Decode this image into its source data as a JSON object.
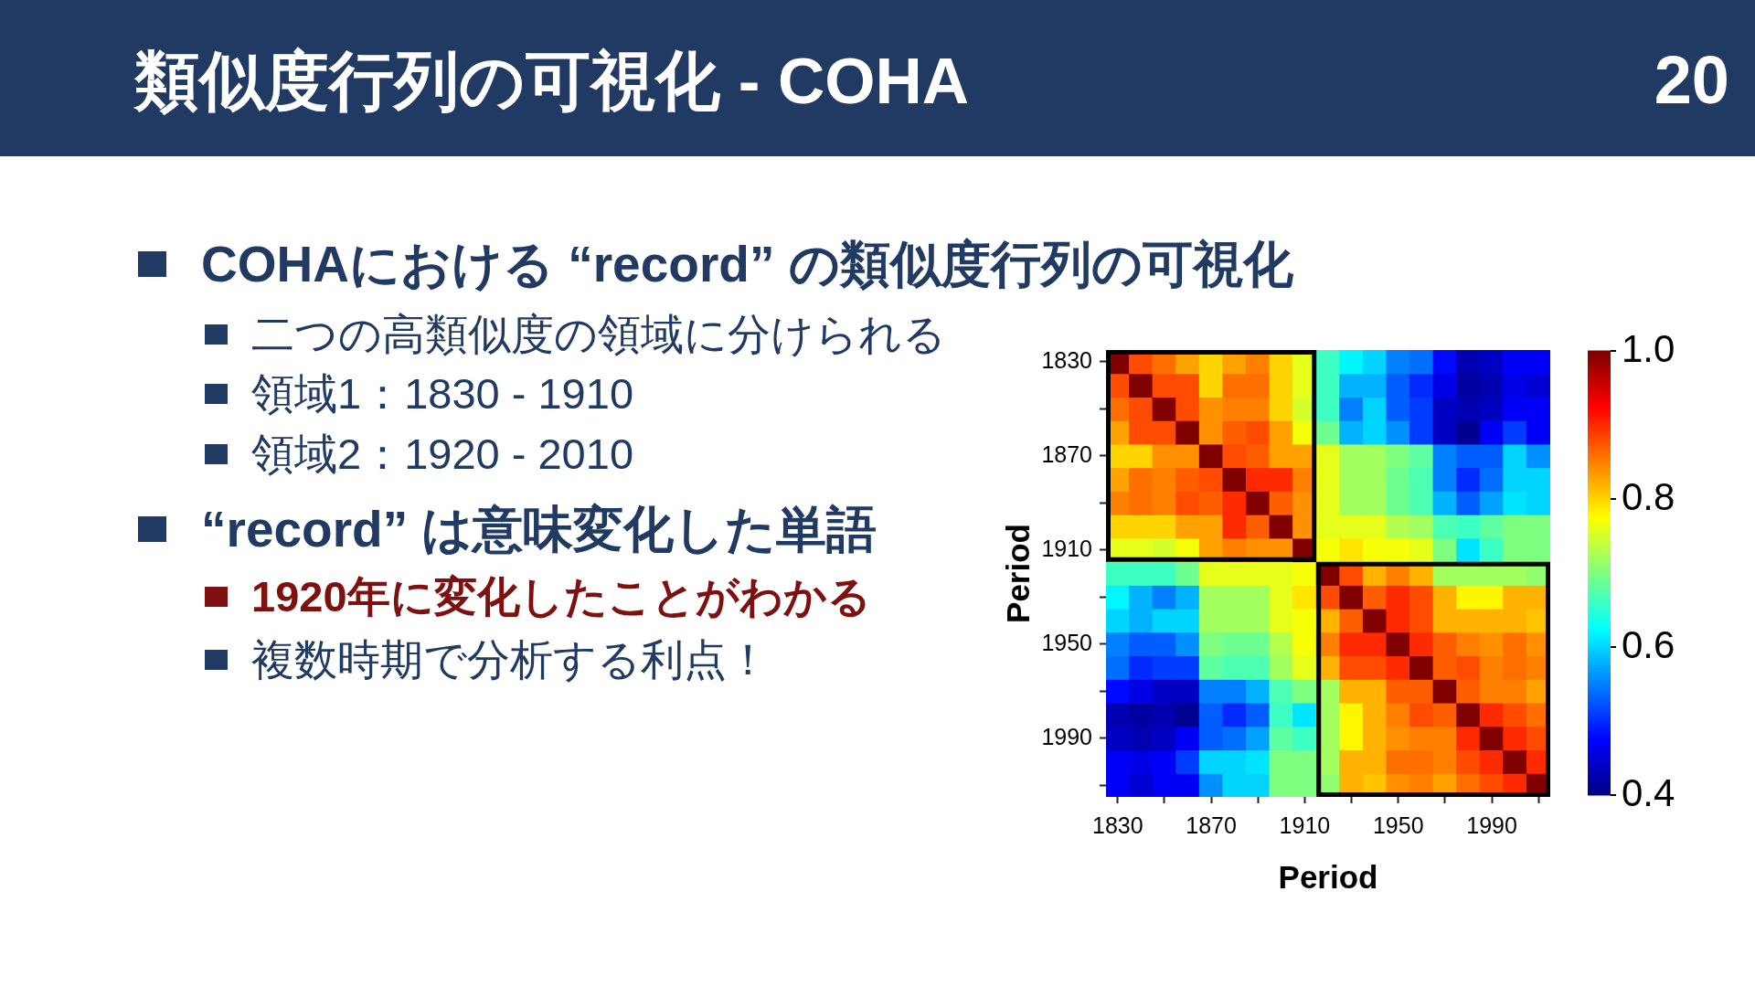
{
  "chart_data": {
    "type": "heatmap",
    "title": "類似度行列の可視化 - COHA",
    "xlabel": "Period",
    "ylabel": "Period",
    "categories": [
      "1830",
      null,
      null,
      null,
      "1870",
      null,
      null,
      null,
      "1910",
      null,
      null,
      null,
      "1950",
      null,
      null,
      null,
      "1990",
      null,
      null
    ],
    "y_categories": [
      "1830",
      null,
      null,
      null,
      "1870",
      null,
      null,
      null,
      "1910",
      null,
      null,
      null,
      "1950",
      null,
      null,
      null,
      "1990",
      null,
      null
    ],
    "cells": [
      [
        1,
        0.88,
        0.86,
        0.83,
        0.8,
        0.83,
        0.85,
        0.8,
        0.76,
        0.66,
        0.62,
        0.6,
        0.55,
        0.54,
        0.48,
        0.43,
        0.44,
        0.47,
        0.47
      ],
      [
        0.88,
        1,
        0.88,
        0.88,
        0.8,
        0.86,
        0.86,
        0.8,
        0.76,
        0.66,
        0.58,
        0.58,
        0.53,
        0.5,
        0.46,
        0.42,
        0.43,
        0.46,
        0.45
      ],
      [
        0.86,
        0.88,
        1,
        0.88,
        0.84,
        0.85,
        0.85,
        0.8,
        0.75,
        0.66,
        0.55,
        0.6,
        0.53,
        0.51,
        0.44,
        0.43,
        0.44,
        0.47,
        0.47
      ],
      [
        0.83,
        0.88,
        0.88,
        1,
        0.84,
        0.87,
        0.88,
        0.83,
        0.77,
        0.69,
        0.58,
        0.6,
        0.56,
        0.51,
        0.44,
        0.41,
        0.47,
        0.51,
        0.47
      ],
      [
        0.8,
        0.8,
        0.84,
        0.84,
        1,
        0.88,
        0.87,
        0.83,
        0.83,
        0.76,
        0.72,
        0.72,
        0.7,
        0.68,
        0.55,
        0.53,
        0.53,
        0.6,
        0.56
      ],
      [
        0.83,
        0.86,
        0.85,
        0.87,
        0.88,
        1,
        0.9,
        0.9,
        0.85,
        0.76,
        0.72,
        0.72,
        0.69,
        0.67,
        0.55,
        0.5,
        0.54,
        0.6,
        0.6
      ],
      [
        0.85,
        0.86,
        0.85,
        0.88,
        0.87,
        0.9,
        1,
        0.87,
        0.84,
        0.76,
        0.72,
        0.72,
        0.69,
        0.67,
        0.58,
        0.53,
        0.57,
        0.61,
        0.6
      ],
      [
        0.8,
        0.8,
        0.8,
        0.83,
        0.83,
        0.9,
        0.87,
        1,
        0.84,
        0.76,
        0.76,
        0.76,
        0.73,
        0.72,
        0.67,
        0.66,
        0.68,
        0.7,
        0.7
      ],
      [
        0.76,
        0.76,
        0.75,
        0.77,
        0.83,
        0.85,
        0.84,
        0.84,
        1,
        0.77,
        0.79,
        0.77,
        0.77,
        0.76,
        0.7,
        0.61,
        0.66,
        0.7,
        0.7
      ],
      [
        0.66,
        0.66,
        0.66,
        0.69,
        0.76,
        0.76,
        0.76,
        0.76,
        0.77,
        1,
        0.88,
        0.82,
        0.85,
        0.82,
        0.72,
        0.72,
        0.72,
        0.72,
        0.71
      ],
      [
        0.62,
        0.58,
        0.55,
        0.58,
        0.72,
        0.72,
        0.72,
        0.76,
        0.79,
        0.88,
        1,
        0.87,
        0.9,
        0.88,
        0.82,
        0.78,
        0.78,
        0.82,
        0.82
      ],
      [
        0.6,
        0.58,
        0.6,
        0.6,
        0.72,
        0.72,
        0.72,
        0.76,
        0.77,
        0.82,
        0.87,
        1,
        0.9,
        0.88,
        0.82,
        0.82,
        0.82,
        0.82,
        0.81
      ],
      [
        0.55,
        0.53,
        0.53,
        0.56,
        0.7,
        0.69,
        0.69,
        0.73,
        0.77,
        0.85,
        0.9,
        0.9,
        1,
        0.9,
        0.87,
        0.85,
        0.84,
        0.86,
        0.84
      ],
      [
        0.54,
        0.5,
        0.51,
        0.51,
        0.68,
        0.67,
        0.67,
        0.72,
        0.76,
        0.82,
        0.88,
        0.88,
        0.9,
        1,
        0.87,
        0.88,
        0.85,
        0.86,
        0.85
      ],
      [
        0.48,
        0.46,
        0.44,
        0.44,
        0.55,
        0.55,
        0.58,
        0.67,
        0.7,
        0.72,
        0.82,
        0.82,
        0.87,
        0.87,
        1,
        0.87,
        0.85,
        0.85,
        0.83
      ],
      [
        0.43,
        0.42,
        0.43,
        0.41,
        0.53,
        0.5,
        0.53,
        0.66,
        0.61,
        0.72,
        0.78,
        0.82,
        0.85,
        0.88,
        0.87,
        1,
        0.9,
        0.88,
        0.86
      ],
      [
        0.44,
        0.43,
        0.44,
        0.47,
        0.53,
        0.54,
        0.57,
        0.68,
        0.66,
        0.72,
        0.78,
        0.82,
        0.84,
        0.85,
        0.85,
        0.9,
        1,
        0.9,
        0.88
      ],
      [
        0.47,
        0.46,
        0.47,
        0.51,
        0.6,
        0.6,
        0.61,
        0.7,
        0.7,
        0.72,
        0.82,
        0.82,
        0.86,
        0.86,
        0.85,
        0.88,
        0.9,
        1,
        0.9
      ],
      [
        0.47,
        0.45,
        0.47,
        0.47,
        0.56,
        0.6,
        0.6,
        0.7,
        0.7,
        0.71,
        0.82,
        0.81,
        0.84,
        0.85,
        0.83,
        0.86,
        0.88,
        0.9,
        1
      ]
    ],
    "clim": [
      0.4,
      1
    ],
    "cticks": [
      0.4,
      0.6,
      0.8,
      {
        "value": 1,
        "label": "1.0"
      }
    ],
    "annotations": [
      "COHAにおける “record” の類似度行列の可視化",
      "二つの高類似度の領域に分けられる",
      "領域1：1830 - 1910",
      "領域2：1920 - 2010",
      "“record” は意味変化した単語",
      "1920年に変化したことがわかる",
      "複数時期で分析する利点！",
      "20"
    ]
  }
}
